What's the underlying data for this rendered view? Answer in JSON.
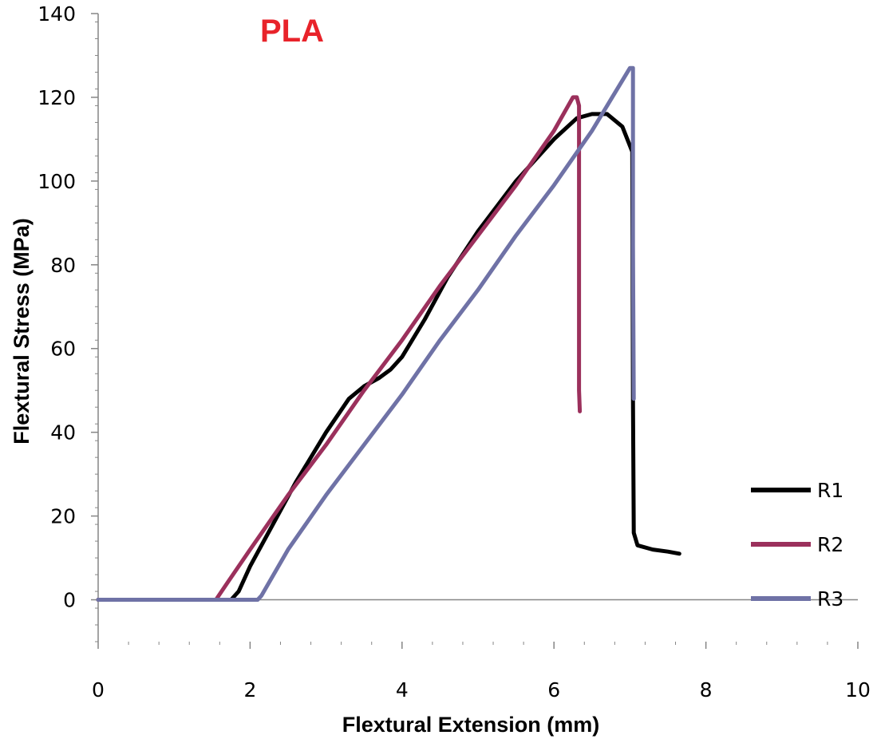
{
  "chart_data": {
    "type": "line",
    "title": "PLA",
    "title_color": "#e8232a",
    "xlabel": "Flextural Extension (mm)",
    "ylabel": "Flextural Stress (MPa)",
    "xlim": [
      0,
      10
    ],
    "ylim": [
      -10,
      140
    ],
    "x_ticks": [
      0,
      2,
      4,
      6,
      8,
      10
    ],
    "y_ticks": [
      0,
      20,
      40,
      60,
      80,
      100,
      120,
      140
    ],
    "x_tick_labels": [
      "0",
      "2",
      "4",
      "6",
      "8",
      "10"
    ],
    "y_tick_labels": [
      "0",
      "20",
      "40",
      "60",
      "80",
      "100",
      "120",
      "140"
    ],
    "grid": false,
    "legend_position": "bottom-right",
    "series": [
      {
        "name": "R1",
        "color": "#000000",
        "x": [
          0,
          1.75,
          1.85,
          2.0,
          2.3,
          2.6,
          3.0,
          3.3,
          3.5,
          3.7,
          3.85,
          4.0,
          4.3,
          4.6,
          5.0,
          5.5,
          6.0,
          6.3,
          6.5,
          6.7,
          6.9,
          7.03,
          7.04,
          7.05,
          7.1,
          7.3,
          7.5,
          7.65
        ],
        "y": [
          0,
          0,
          2,
          8,
          18,
          28,
          40,
          48,
          51,
          53,
          55,
          58,
          67,
          77,
          88,
          100,
          110,
          115,
          116,
          116,
          113,
          107,
          48,
          16,
          13,
          12,
          11.5,
          11
        ]
      },
      {
        "name": "R2",
        "color": "#9b305c",
        "x": [
          0,
          1.55,
          1.7,
          2.0,
          2.5,
          3.0,
          3.5,
          4.0,
          4.5,
          5.0,
          5.5,
          6.0,
          6.25,
          6.3,
          6.33,
          6.33,
          6.34
        ],
        "y": [
          0,
          0,
          4,
          12,
          25,
          37,
          50,
          62,
          75,
          87,
          99,
          112,
          120,
          120,
          118,
          50,
          45
        ]
      },
      {
        "name": "R3",
        "color": "#6f72a6",
        "x": [
          0,
          2.1,
          2.15,
          2.5,
          3.0,
          3.5,
          4.0,
          4.5,
          5.0,
          5.5,
          6.0,
          6.5,
          7.0,
          7.04,
          7.04,
          7.05
        ],
        "y": [
          0,
          0,
          1,
          12,
          25,
          37,
          49,
          62,
          74,
          87,
          99,
          112,
          127,
          127,
          85,
          48
        ]
      }
    ]
  }
}
